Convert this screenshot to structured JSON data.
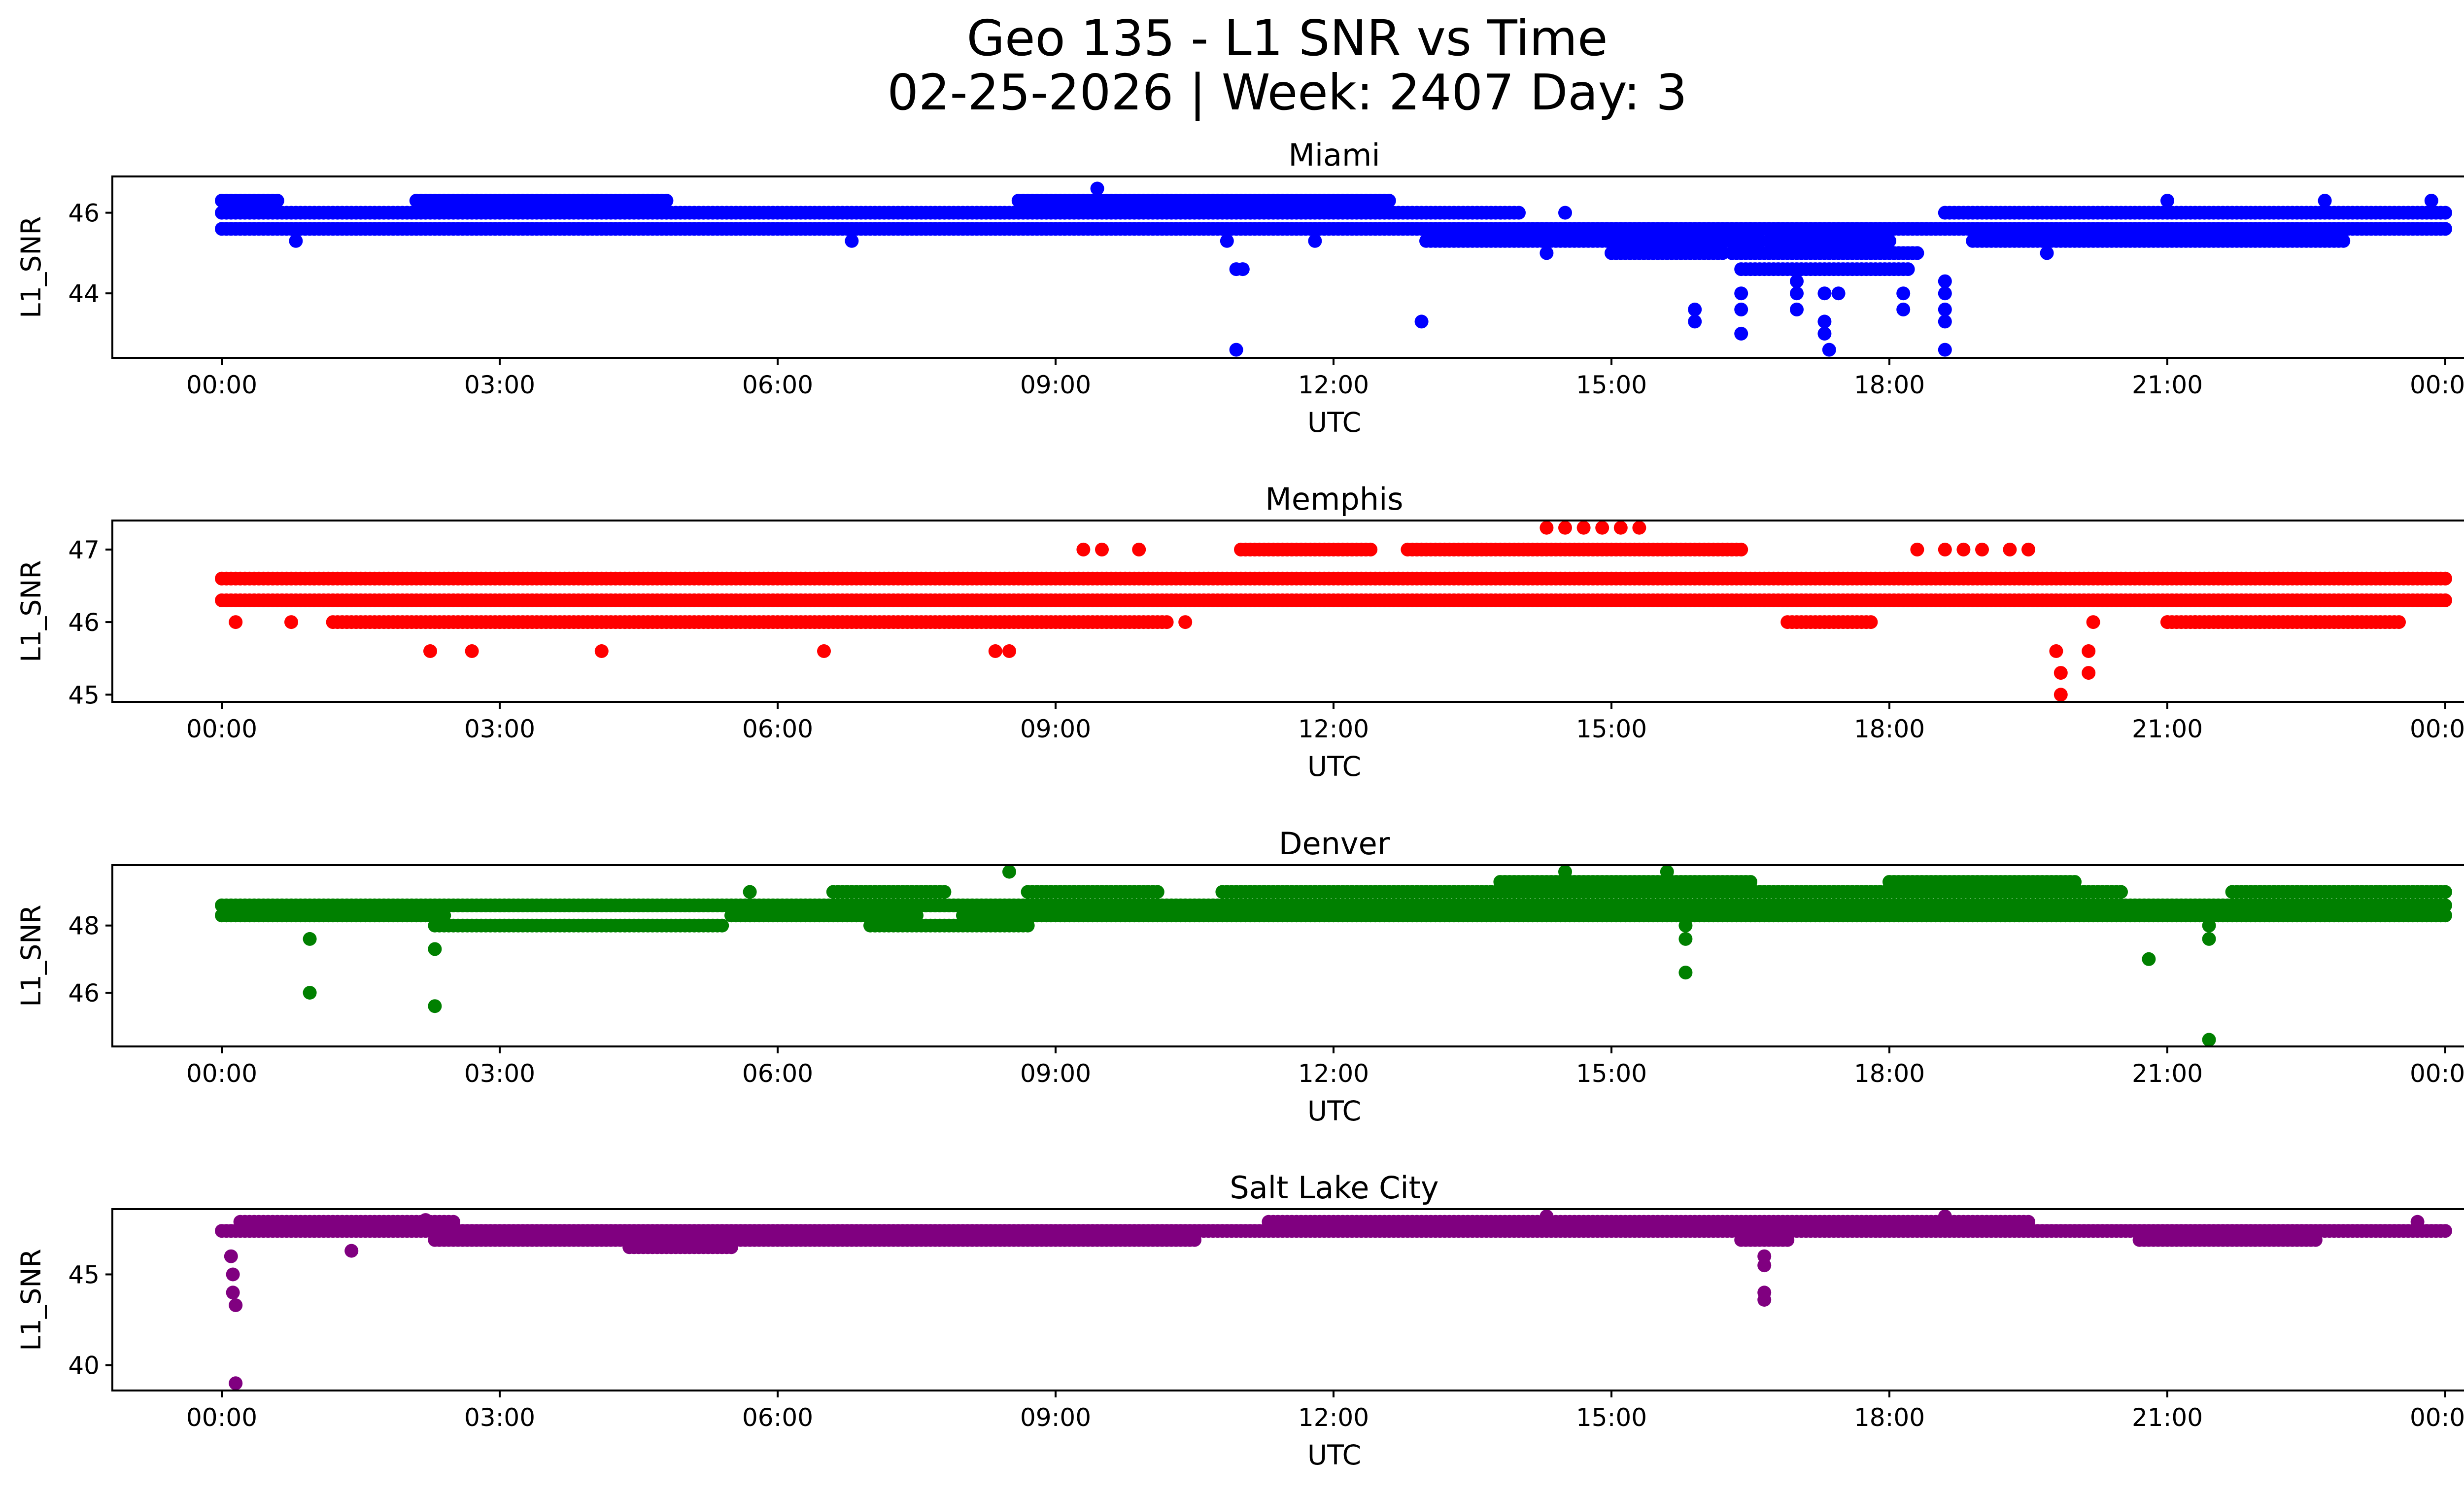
{
  "chart_data": {
    "type": "scatter",
    "title": "Geo 135 - L1 SNR vs Time",
    "subtitle": "02-25-2026 | Week: 2407 Day: 3",
    "x_ticks": [
      "00:00",
      "03:00",
      "06:00",
      "09:00",
      "12:00",
      "15:00",
      "18:00",
      "21:00",
      "00:00"
    ],
    "xlabel": "UTC",
    "ylabel": "L1_SNR",
    "panels": [
      {
        "name": "Miami",
        "color": "#0000ff",
        "ylim": [
          42.4,
          46.9
        ],
        "yticks": [
          44,
          46
        ],
        "levels": [
          {
            "v": 45.6,
            "ranges": [
              [
                0.0,
                24.0
              ]
            ]
          },
          {
            "v": 46.0,
            "ranges": [
              [
                0.0,
                14.0
              ],
              [
                18.6,
                24.0
              ]
            ]
          },
          {
            "v": 46.3,
            "ranges": [
              [
                0.0,
                0.6
              ],
              [
                2.1,
                4.8
              ],
              [
                8.6,
                12.6
              ]
            ]
          },
          {
            "v": 45.3,
            "ranges": [
              [
                13.0,
                16.6
              ],
              [
                16.7,
                18.0
              ],
              [
                18.9,
                22.9
              ]
            ]
          },
          {
            "v": 45.0,
            "ranges": [
              [
                15.0,
                16.2
              ],
              [
                16.3,
                18.3
              ]
            ]
          },
          {
            "v": 44.6,
            "ranges": [
              [
                16.4,
                18.2
              ]
            ]
          }
        ],
        "points": [
          [
            0.8,
            45.3
          ],
          [
            6.8,
            45.3
          ],
          [
            9.45,
            46.6
          ],
          [
            10.85,
            45.3
          ],
          [
            10.95,
            44.6
          ],
          [
            11.02,
            44.6
          ],
          [
            10.95,
            42.6
          ],
          [
            11.8,
            45.3
          ],
          [
            12.95,
            43.3
          ],
          [
            14.3,
            45.0
          ],
          [
            14.5,
            46.0
          ],
          [
            15.9,
            43.6
          ],
          [
            15.9,
            43.3
          ],
          [
            16.4,
            44.0
          ],
          [
            16.4,
            43.6
          ],
          [
            16.4,
            43.0
          ],
          [
            16.5,
            45.6
          ],
          [
            16.8,
            45.6
          ],
          [
            17.0,
            44.3
          ],
          [
            17.0,
            44.0
          ],
          [
            17.0,
            43.6
          ],
          [
            17.3,
            44.0
          ],
          [
            17.3,
            43.3
          ],
          [
            17.3,
            43.0
          ],
          [
            17.35,
            42.6
          ],
          [
            17.45,
            44.0
          ],
          [
            18.15,
            44.0
          ],
          [
            18.15,
            43.6
          ],
          [
            18.6,
            44.3
          ],
          [
            18.6,
            44.0
          ],
          [
            18.6,
            43.6
          ],
          [
            18.6,
            43.3
          ],
          [
            18.6,
            42.6
          ],
          [
            19.7,
            45.0
          ],
          [
            21.0,
            46.3
          ],
          [
            22.7,
            46.3
          ],
          [
            23.85,
            46.3
          ]
        ]
      },
      {
        "name": "Memphis",
        "color": "#ff0000",
        "ylim": [
          44.9,
          47.4
        ],
        "yticks": [
          45,
          46,
          47
        ],
        "levels": [
          {
            "v": 46.3,
            "ranges": [
              [
                0.0,
                24.0
              ]
            ]
          },
          {
            "v": 46.6,
            "ranges": [
              [
                0.0,
                24.0
              ]
            ]
          },
          {
            "v": 46.0,
            "ranges": [
              [
                1.2,
                10.2
              ],
              [
                16.9,
                17.8
              ],
              [
                21.0,
                23.5
              ]
            ]
          },
          {
            "v": 47.0,
            "ranges": [
              [
                11.0,
                12.4
              ],
              [
                12.8,
                16.4
              ]
            ]
          }
        ],
        "points": [
          [
            0.15,
            46.0
          ],
          [
            0.75,
            46.0
          ],
          [
            2.25,
            45.6
          ],
          [
            2.7,
            45.6
          ],
          [
            4.1,
            45.6
          ],
          [
            6.5,
            45.6
          ],
          [
            8.35,
            45.6
          ],
          [
            8.5,
            45.6
          ],
          [
            9.3,
            47.0
          ],
          [
            9.5,
            47.0
          ],
          [
            9.9,
            47.0
          ],
          [
            10.4,
            46.0
          ],
          [
            14.3,
            47.3
          ],
          [
            14.5,
            47.3
          ],
          [
            14.7,
            47.3
          ],
          [
            14.9,
            47.3
          ],
          [
            15.1,
            47.3
          ],
          [
            15.3,
            47.3
          ],
          [
            18.3,
            47.0
          ],
          [
            18.6,
            47.0
          ],
          [
            18.8,
            47.0
          ],
          [
            19.0,
            47.0
          ],
          [
            19.3,
            47.0
          ],
          [
            19.5,
            47.0
          ],
          [
            19.8,
            45.6
          ],
          [
            19.85,
            45.3
          ],
          [
            19.85,
            45.0
          ],
          [
            20.15,
            45.6
          ],
          [
            20.15,
            45.3
          ],
          [
            20.2,
            46.0
          ],
          [
            21.0,
            46.0
          ],
          [
            21.3,
            46.0
          ],
          [
            22.0,
            46.0
          ],
          [
            22.6,
            46.0
          ]
        ]
      },
      {
        "name": "Denver",
        "color": "#008000",
        "ylim": [
          44.4,
          49.8
        ],
        "yticks": [
          46,
          48
        ],
        "levels": [
          {
            "v": 48.3,
            "ranges": [
              [
                0.0,
                2.4
              ],
              [
                5.5,
                7.5
              ],
              [
                8.0,
                24.0
              ]
            ]
          },
          {
            "v": 48.6,
            "ranges": [
              [
                0.0,
                24.0
              ]
            ]
          },
          {
            "v": 48.0,
            "ranges": [
              [
                2.3,
                5.4
              ],
              [
                7.0,
                8.7
              ]
            ]
          },
          {
            "v": 49.0,
            "ranges": [
              [
                6.6,
                7.8
              ],
              [
                8.7,
                10.1
              ],
              [
                10.8,
                20.5
              ],
              [
                21.7,
                24.0
              ]
            ]
          },
          {
            "v": 49.3,
            "ranges": [
              [
                13.8,
                16.5
              ],
              [
                18.0,
                20.0
              ]
            ]
          }
        ],
        "points": [
          [
            0.95,
            47.6
          ],
          [
            0.95,
            46.0
          ],
          [
            2.3,
            47.3
          ],
          [
            2.3,
            45.6
          ],
          [
            5.7,
            49.0
          ],
          [
            8.5,
            49.6
          ],
          [
            14.5,
            49.6
          ],
          [
            15.6,
            49.6
          ],
          [
            15.8,
            48.0
          ],
          [
            15.8,
            47.6
          ],
          [
            15.8,
            46.6
          ],
          [
            20.8,
            47.0
          ],
          [
            21.45,
            48.0
          ],
          [
            21.45,
            47.6
          ],
          [
            21.45,
            44.6
          ]
        ]
      },
      {
        "name": "Salt Lake City",
        "color": "#800080",
        "ylim": [
          38.6,
          48.6
        ],
        "yticks": [
          40,
          45
        ],
        "levels": [
          {
            "v": 47.4,
            "ranges": [
              [
                0.0,
                24.0
              ]
            ]
          },
          {
            "v": 47.9,
            "ranges": [
              [
                0.2,
                2.5
              ],
              [
                11.3,
                19.5
              ]
            ]
          },
          {
            "v": 46.9,
            "ranges": [
              [
                2.3,
                10.5
              ],
              [
                16.4,
                16.9
              ],
              [
                20.7,
                22.6
              ]
            ]
          },
          {
            "v": 46.5,
            "ranges": [
              [
                4.4,
                5.5
              ]
            ]
          }
        ],
        "points": [
          [
            0.1,
            46.0
          ],
          [
            0.12,
            45.0
          ],
          [
            0.12,
            44.0
          ],
          [
            0.15,
            43.3
          ],
          [
            0.15,
            39.0
          ],
          [
            1.4,
            46.3
          ],
          [
            2.2,
            48.0
          ],
          [
            14.3,
            48.2
          ],
          [
            16.65,
            46.0
          ],
          [
            16.65,
            45.5
          ],
          [
            16.65,
            44.0
          ],
          [
            16.65,
            43.6
          ],
          [
            18.6,
            48.2
          ],
          [
            23.7,
            47.9
          ]
        ]
      }
    ]
  }
}
